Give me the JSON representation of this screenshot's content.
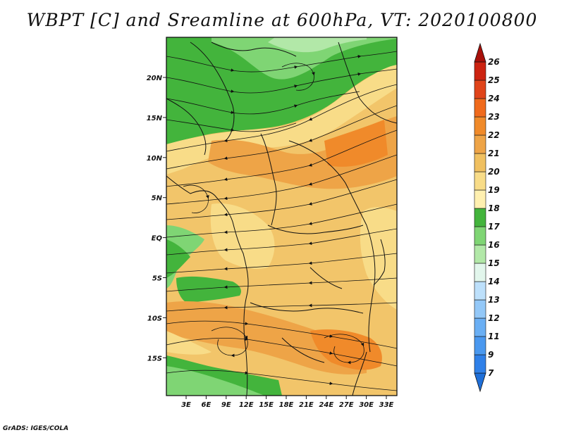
{
  "title": "WBPT [C] and Sreamline at 600hPa, VT: 2020100800",
  "credit": "GrADS: IGES/COLA",
  "map": {
    "lat_labels": [
      "20N",
      "15N",
      "10N",
      "5N",
      "EQ",
      "5S",
      "10S",
      "15S"
    ],
    "lon_labels": [
      "3E",
      "6E",
      "9E",
      "12E",
      "15E",
      "18E",
      "21E",
      "24E",
      "27E",
      "30E",
      "33E"
    ]
  },
  "colorbar": {
    "labels": [
      "7",
      "9",
      "11",
      "12",
      "13",
      "14",
      "15",
      "16",
      "17",
      "18",
      "19",
      "20",
      "21",
      "22",
      "23",
      "24",
      "25",
      "26"
    ],
    "colors": [
      "#1f6fd8",
      "#2f80e8",
      "#4a98ef",
      "#6aaff4",
      "#93c8f8",
      "#bde0fb",
      "#e2f6ec",
      "#b2e8a8",
      "#7fd574",
      "#43b43c",
      "#fff0b0",
      "#f8dc88",
      "#f0c060",
      "#eea447",
      "#f08a2a",
      "#f06a1c",
      "#e0441a",
      "#cc2311",
      "#a8100a"
    ]
  }
}
